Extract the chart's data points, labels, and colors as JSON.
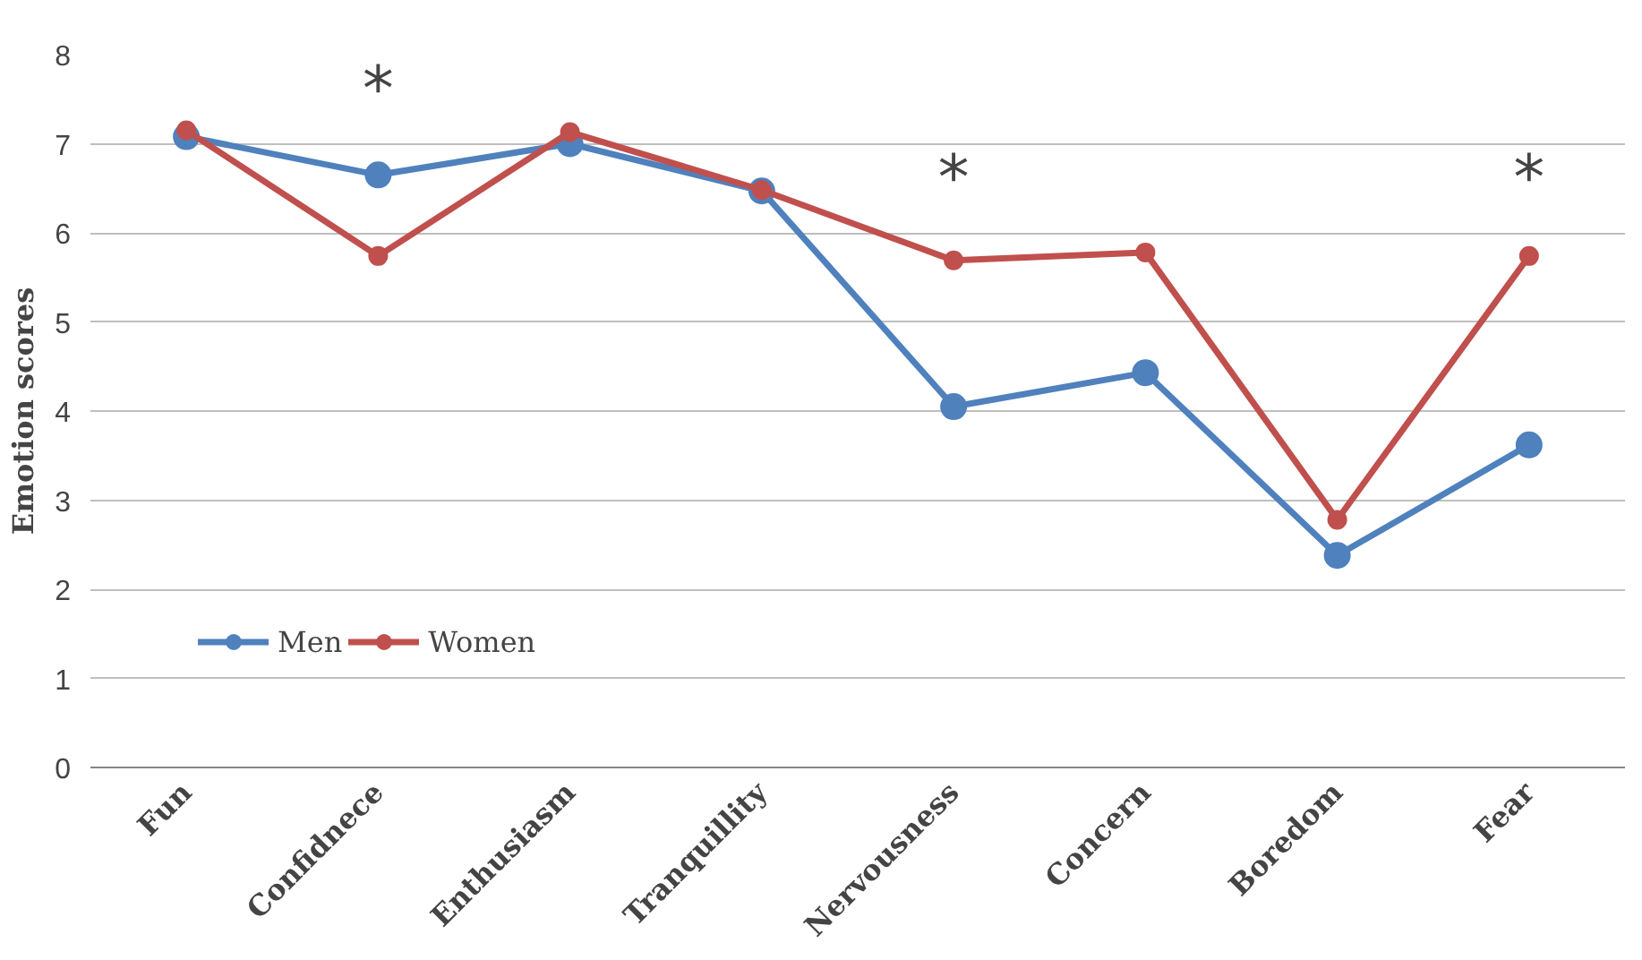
{
  "chart_data": {
    "type": "line",
    "ylabel": "Emotion scores",
    "categories": [
      "Fun",
      "Confidnece",
      "Enthusiasm",
      "Tranquillity",
      "Nervousness",
      "Concern",
      "Boredom",
      "Fear"
    ],
    "series": [
      {
        "name": "Men",
        "color": "#4f81bd",
        "values": [
          7.08,
          6.65,
          7.0,
          6.47,
          4.05,
          4.43,
          2.38,
          3.62
        ]
      },
      {
        "name": "Women",
        "color": "#c0504d",
        "values": [
          7.15,
          5.74,
          7.13,
          6.48,
          5.69,
          5.78,
          2.78,
          5.74
        ]
      }
    ],
    "ylim": [
      0,
      8
    ],
    "yticks": [
      0,
      1,
      2,
      3,
      4,
      5,
      6,
      7,
      8
    ],
    "grid": "y",
    "legend": "bottom left",
    "marker": "circle",
    "line_style": "solid",
    "annotations": [
      "*",
      "*",
      "*"
    ]
  }
}
